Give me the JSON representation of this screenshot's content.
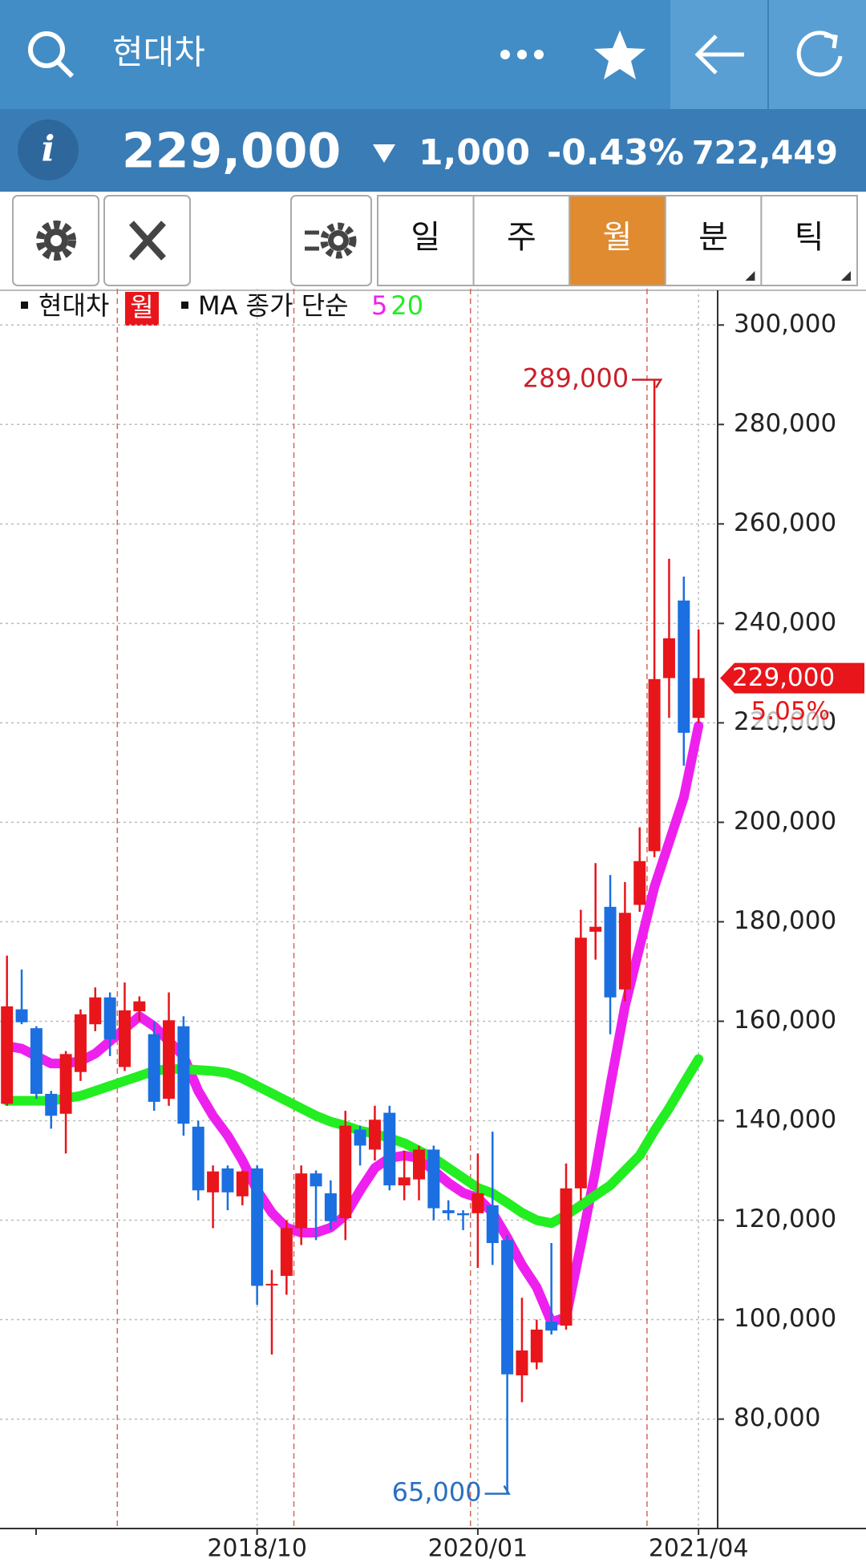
{
  "header": {
    "title": "현대차",
    "info_icon": "i",
    "price": "229,000",
    "change": "1,000",
    "change_pct": "-0.43%",
    "volume": "722,449"
  },
  "periods": [
    "일",
    "주",
    "월",
    "분",
    "틱"
  ],
  "chart_data": {
    "type": "candlestick",
    "legend": {
      "symbol": "현대차",
      "period": "월",
      "ma_label": "MA 종가 단순"
    },
    "categories": [
      null,
      null,
      null,
      null,
      null,
      null,
      null,
      null,
      null,
      null,
      null,
      null,
      null,
      null,
      null,
      null,
      null,
      "2018/10",
      null,
      null,
      null,
      null,
      null,
      null,
      null,
      null,
      null,
      null,
      null,
      null,
      null,
      null,
      "2020/01",
      null,
      null,
      null,
      null,
      null,
      null,
      null,
      null,
      null,
      null,
      null,
      null,
      null,
      null,
      "2021/04"
    ],
    "open": [
      143400,
      162400,
      158600,
      145400,
      141400,
      149800,
      159400,
      164800,
      150800,
      162000,
      157400,
      144400,
      159000,
      138800,
      125600,
      130400,
      124800,
      130400,
      107000,
      108800,
      118400,
      129400,
      125400,
      120400,
      138200,
      134200,
      141600,
      127000,
      128200,
      134200,
      122000,
      121400,
      121400,
      123000,
      116000,
      88800,
      91400,
      99600,
      98800,
      126400,
      178000,
      183000,
      166400,
      183400,
      194200,
      229000,
      244600,
      221000
    ],
    "high": [
      173200,
      170400,
      159000,
      146000,
      154000,
      162400,
      166800,
      165800,
      167800,
      165000,
      160000,
      165800,
      161000,
      140000,
      131000,
      131000,
      130000,
      131000,
      110000,
      120000,
      131000,
      130000,
      128000,
      142000,
      139000,
      143000,
      143000,
      134000,
      135000,
      135000,
      124000,
      122000,
      133400,
      137800,
      117000,
      104400,
      100000,
      115400,
      131400,
      182400,
      191800,
      189400,
      188000,
      199000,
      289000,
      253000,
      249400,
      238800
    ],
    "low": [
      143000,
      159400,
      144400,
      138400,
      133400,
      148000,
      158000,
      153000,
      150000,
      160000,
      142000,
      143000,
      137000,
      124000,
      118400,
      122000,
      123000,
      103000,
      93000,
      105000,
      115000,
      116000,
      118000,
      116000,
      131000,
      132000,
      126000,
      124000,
      124000,
      120000,
      120000,
      118000,
      110400,
      111000,
      65000,
      83400,
      90000,
      97000,
      98000,
      124000,
      172400,
      157400,
      164000,
      182000,
      193000,
      221000,
      211400,
      220000
    ],
    "close": [
      163000,
      159800,
      145400,
      141000,
      153400,
      161400,
      164800,
      156400,
      162200,
      164000,
      143800,
      160200,
      139400,
      126000,
      129800,
      125600,
      129800,
      106800,
      107200,
      118400,
      129400,
      126800,
      119800,
      139000,
      135000,
      140200,
      127000,
      128600,
      134200,
      122400,
      121400,
      121000,
      125400,
      115400,
      89000,
      93800,
      98000,
      97800,
      126400,
      176800,
      179000,
      164800,
      181800,
      192200,
      228800,
      237000,
      218000,
      229000
    ],
    "up_color": "#e8151b",
    "down_color": "#1b6fe0",
    "series": [
      {
        "name": "5",
        "color": "#ee20ee",
        "values": [
          155000,
          154500,
          153000,
          151500,
          151500,
          152000,
          153500,
          156000,
          158500,
          161000,
          159000,
          156000,
          153000,
          146000,
          141000,
          137000,
          132000,
          126000,
          121500,
          118500,
          117500,
          117500,
          118500,
          121000,
          126000,
          130500,
          132500,
          133000,
          132500,
          130000,
          127500,
          125500,
          124500,
          121500,
          116500,
          111000,
          106500,
          99500,
          100500,
          115000,
          130000,
          147000,
          163000,
          175000,
          187000,
          196000,
          205000,
          219400
        ]
      },
      {
        "name": "20",
        "color": "#22ee22",
        "values": [
          144000,
          144000,
          144000,
          144000,
          144500,
          145000,
          146000,
          147000,
          148000,
          149000,
          150000,
          150400,
          150400,
          150200,
          150000,
          149600,
          148500,
          147000,
          145500,
          144000,
          142500,
          141000,
          139800,
          139000,
          138000,
          137400,
          136500,
          135500,
          134000,
          132500,
          130500,
          128500,
          126500,
          125400,
          123500,
          121500,
          120000,
          119400,
          121000,
          123000,
          125000,
          127000,
          130000,
          133000,
          138000,
          142500,
          147500,
          152400
        ]
      }
    ],
    "ylim": [
      58000,
      307300
    ],
    "yticks": [
      {
        "value": 80000,
        "label": "80,000"
      },
      {
        "value": 100000,
        "label": "100,000"
      },
      {
        "value": 120000,
        "label": "120,000"
      },
      {
        "value": 140000,
        "label": "140,000"
      },
      {
        "value": 160000,
        "label": "160,000"
      },
      {
        "value": 180000,
        "label": "180,000"
      },
      {
        "value": 200000,
        "label": "200,000"
      },
      {
        "value": 220000,
        "label": "220,000"
      },
      {
        "value": 240000,
        "label": "240,000"
      },
      {
        "value": 260000,
        "label": "260,000"
      },
      {
        "value": 280000,
        "label": "280,000"
      },
      {
        "value": 300000,
        "label": "300,000"
      }
    ],
    "grid": true,
    "max_label": "289,000",
    "min_label": "65,000",
    "last_label": "229,000",
    "last_change": "5.05%"
  }
}
